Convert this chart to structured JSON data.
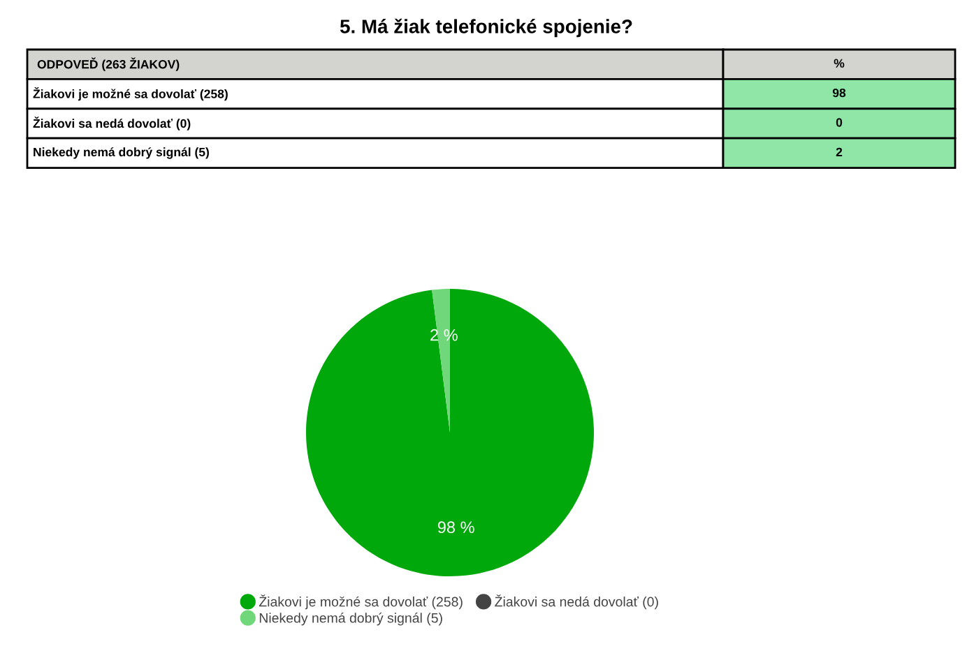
{
  "chart_data": [
    {
      "type": "other",
      "title": "5. Má žiak telefonické spojenie?",
      "categories": [
        "Žiakovi je možné sa dovolať (258)",
        "Žiakovi sa nedá dovolať (0)",
        "Niekedy nemá dobrý signál (5)"
      ],
      "values": [
        98,
        0,
        2
      ],
      "data_labels": true,
      "annotations": [
        "ODPOVEĎ (263 ŽIAKOV)",
        "%"
      ]
    },
    {
      "type": "pie",
      "categories": [
        "Žiakovi je možné sa dovolať (258)",
        "Žiakovi sa nedá dovolať (0)",
        "Niekedy nemá dobrý signál (5)"
      ],
      "values": [
        98,
        0,
        2
      ],
      "colors": [
        "#00a80b",
        "#444444",
        "#70d77a"
      ],
      "value_labels": [
        "98 %",
        null,
        "2 %"
      ],
      "legend": "bottom"
    }
  ]
}
